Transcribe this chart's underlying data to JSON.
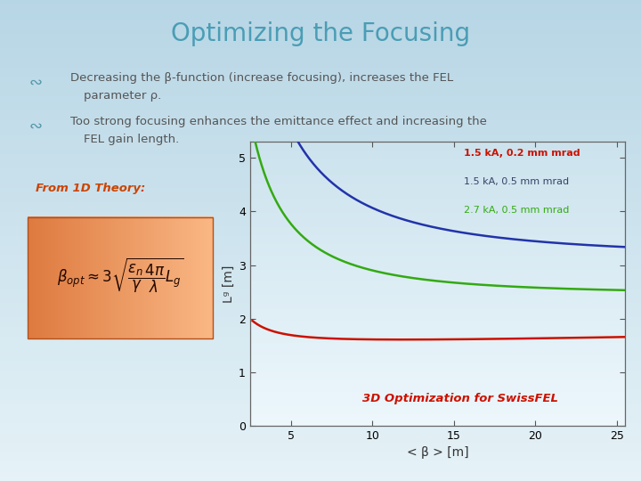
{
  "title": "Optimizing the Focusing",
  "title_color": "#4a9db5",
  "title_fontsize": 20,
  "bullet1_line1": "Decreasing the β-function (increase focusing), increases the FEL",
  "bullet1_line2": "parameter ρ.",
  "bullet2_line1": "Too strong focusing enhances the emittance effect and increasing the",
  "bullet2_line2": "FEL gain length.",
  "from_theory": "From 1D Theory:",
  "annotation": "3D Optimization for SwissFEL",
  "xlabel": "< β > [m]",
  "ylabel": "Lᵍ [m]",
  "xlim": [
    2.5,
    25.5
  ],
  "ylim": [
    0,
    5.3
  ],
  "xticks": [
    5,
    10,
    15,
    20,
    25
  ],
  "yticks": [
    0,
    1,
    2,
    3,
    4,
    5
  ],
  "legend1": "1.5 kA, 0.2 mm mrad",
  "legend2": "1.5 kA, 0.5 mm mrad",
  "legend3": "2.7 kA, 0.5 mm mrad",
  "line_color_red": "#cc1100",
  "line_color_blue": "#2233aa",
  "line_color_green": "#33aa11",
  "legend_color_red": "#cc1100",
  "legend_color_blue": "#334466",
  "legend_color_green": "#33aa11",
  "plot_bg_top": "#e8f4f8",
  "plot_bg_bottom": "#c8dde8",
  "slide_bg": "#d0e4ee",
  "bullet_color": "#555555",
  "bullet_symbol_color": "#5599aa",
  "annotation_color": "#cc1100",
  "from_theory_color": "#cc4400",
  "formula_bg_left": "#e88858",
  "formula_bg_right": "#f0a070"
}
